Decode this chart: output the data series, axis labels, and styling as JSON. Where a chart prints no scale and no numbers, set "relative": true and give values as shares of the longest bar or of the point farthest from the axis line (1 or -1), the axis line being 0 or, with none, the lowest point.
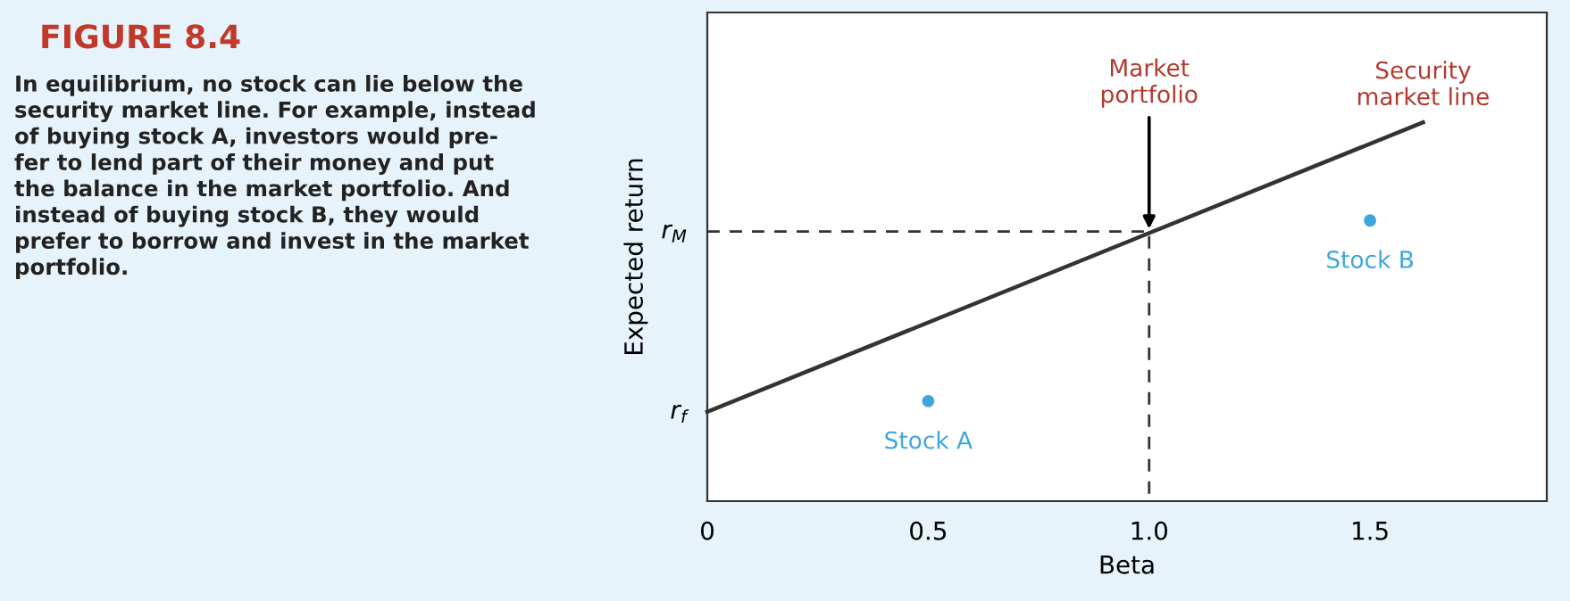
{
  "chart_data": {
    "type": "line",
    "title": "FIGURE 8.4",
    "subtitle": "In equilibrium, no stock can lie below the\nsecurity market line. For example, instead\nof buying stock A, investors would pre-\nfer to lend part of their money and put\nthe balance in the market portfolio. And\ninstead of buying stock B, they would\nprefer to borrow and invest in the market\nportfolio.",
    "xlabel": "Beta",
    "ylabel": "Expected return",
    "relative": true,
    "xlim": [
      0,
      1.9
    ],
    "xticks": [
      0,
      0.5,
      "1.0",
      1.5
    ],
    "series": [
      {
        "color": "#333333",
        "x": [
          0,
          1.62
        ],
        "values": [
          0.236,
          1.0
        ],
        "line_style": "solid"
      },
      {
        "color": "#333333",
        "x": [
          0,
          1.0,
          1.0
        ],
        "values": [
          0.712,
          0.712,
          0
        ],
        "line_style": "dashed"
      },
      {
        "type": "scatter",
        "name": "Stock A",
        "color": "#3fa6dc",
        "x": [
          0.5
        ],
        "values": [
          0.264
        ],
        "marker": "circle"
      },
      {
        "type": "scatter",
        "name": "Stock B",
        "color": "#3fa6dc",
        "x": [
          1.5
        ],
        "values": [
          0.741
        ],
        "marker": "circle"
      }
    ],
    "annotations": [
      {
        "text": "Market\nportfolio",
        "x": 1.0,
        "y": 0.712
      },
      {
        "text": "Security\nmarket line",
        "x": 1.62,
        "y": 1.0
      },
      {
        "text": "r$_{f}$",
        "x": 0,
        "y": 0.236
      },
      {
        "text": "r$_{M}$",
        "x": 0,
        "y": 0.712
      }
    ],
    "grid": false,
    "legend": false
  }
}
